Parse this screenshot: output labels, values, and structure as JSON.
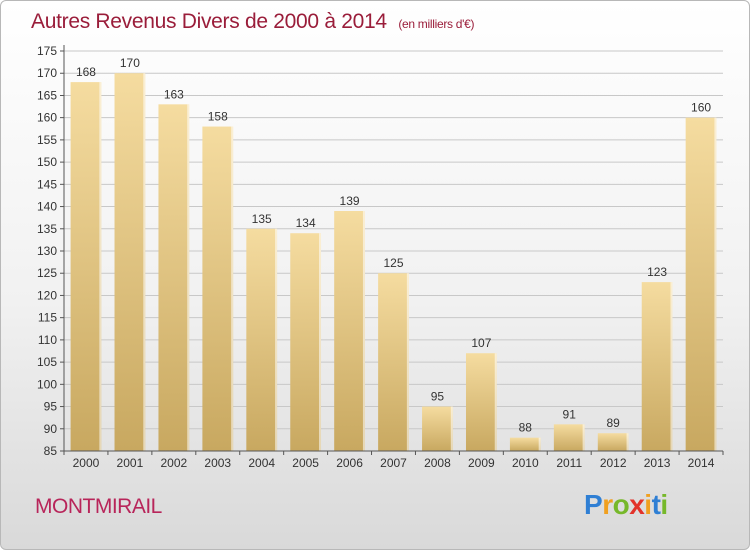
{
  "chart_data": {
    "type": "bar",
    "title": "Autres Revenus Divers de 2000 à 2014",
    "subtitle": "(en milliers d'€)",
    "xlabel": "",
    "ylabel": "",
    "categories": [
      "2000",
      "2001",
      "2002",
      "2003",
      "2004",
      "2005",
      "2006",
      "2007",
      "2008",
      "2009",
      "2010",
      "2011",
      "2012",
      "2013",
      "2014"
    ],
    "values": [
      168,
      170,
      163,
      158,
      135,
      134,
      139,
      125,
      95,
      107,
      88,
      91,
      89,
      123,
      160
    ],
    "ylim": [
      85,
      175
    ],
    "yticks": [
      85,
      90,
      95,
      100,
      105,
      110,
      115,
      120,
      125,
      130,
      135,
      140,
      145,
      150,
      155,
      160,
      165,
      170,
      175
    ],
    "grid": true,
    "bar_color_top": "#f5dca0",
    "bar_color_bottom": "#c8a860"
  },
  "footer": {
    "location": "MONTMIRAIL",
    "logo": {
      "parts": [
        "P",
        "r",
        "o",
        "x",
        "i",
        "t",
        "i"
      ]
    }
  }
}
